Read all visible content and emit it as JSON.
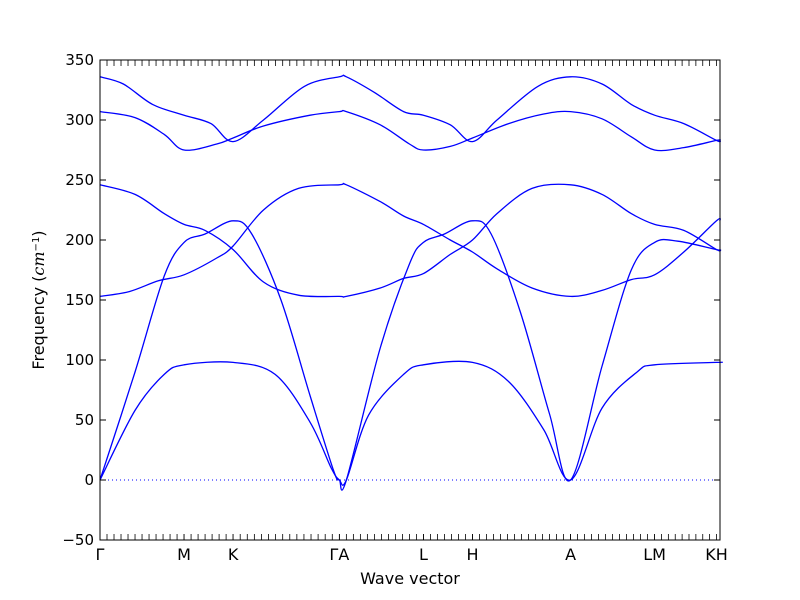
{
  "chart_data": {
    "type": "line",
    "xlabel": "Wave vector",
    "ylabel_prefix": "Frequency (",
    "ylabel_math": "cm",
    "ylabel_exp": "−1",
    "ylabel_suffix": ")",
    "ylim": [
      -50,
      350
    ],
    "yticks": [
      -50,
      0,
      50,
      100,
      150,
      200,
      250,
      300,
      350
    ],
    "ytick_labels": [
      "−50",
      "0",
      "50",
      "100",
      "150",
      "200",
      "250",
      "300",
      "350"
    ],
    "xlim": [
      0,
      5.31
    ],
    "high_symmetry_points": [
      {
        "label": "Γ",
        "x": 0
      },
      {
        "label": "M",
        "x": 0.72
      },
      {
        "label": "K",
        "x": 1.14
      },
      {
        "label": "ΓA",
        "x": 2.05
      },
      {
        "label": "L",
        "x": 2.77
      },
      {
        "label": "H",
        "x": 3.19
      },
      {
        "label": "A",
        "x": 4.03
      },
      {
        "label": "LM",
        "x": 4.75
      },
      {
        "label": "KH",
        "x": 5.28
      }
    ],
    "zero_line": {
      "y": 0,
      "style": "dotted",
      "color": "#0000ff"
    },
    "grid": false,
    "legend": "none",
    "line_color": "#0000ff",
    "series": [
      {
        "x": [
          0,
          0.3,
          0.55,
          0.72,
          1.14,
          1.5,
          1.8,
          1.98,
          2.05,
          2.11,
          2.3,
          2.6,
          2.77,
          3.19,
          3.5,
          3.8,
          4.03,
          4.3,
          4.6,
          4.75,
          5.28,
          5.31
        ],
        "values": [
          0,
          58,
          88,
          96,
          98,
          88,
          48,
          10,
          0,
          0,
          54,
          88,
          96,
          98,
          82,
          42,
          0,
          60,
          90,
          96,
          98,
          98
        ]
      },
      {
        "x": [
          0,
          0.3,
          0.55,
          0.72,
          0.9,
          1.14,
          1.3,
          1.55,
          1.8,
          2.0,
          2.05,
          2.11,
          2.4,
          2.65,
          2.77,
          2.95,
          3.19,
          3.35,
          3.6,
          3.85,
          4.03,
          4.3,
          4.55,
          4.75,
          4.95,
          5.28,
          5.31
        ],
        "values": [
          0,
          90,
          170,
          198,
          205,
          216,
          205,
          150,
          70,
          8,
          0,
          0,
          110,
          180,
          198,
          205,
          216,
          205,
          140,
          55,
          0,
          95,
          175,
          198,
          199,
          192,
          192
        ]
      },
      {
        "x": [
          0,
          0.25,
          0.5,
          0.72,
          1.0,
          1.14,
          1.4,
          1.7,
          2.05,
          2.11,
          2.4,
          2.6,
          2.77,
          3.0,
          3.19,
          3.4,
          3.7,
          4.03,
          4.3,
          4.55,
          4.75,
          5.0,
          5.28,
          5.31
        ],
        "values": [
          153,
          157,
          166,
          171,
          185,
          195,
          225,
          243,
          246,
          246,
          232,
          220,
          213,
          200,
          190,
          176,
          160,
          153,
          158,
          167,
          171,
          190,
          216,
          216
        ]
      },
      {
        "x": [
          0,
          0.3,
          0.55,
          0.72,
          0.9,
          1.14,
          1.4,
          1.7,
          2.05,
          2.11,
          2.4,
          2.6,
          2.77,
          3.0,
          3.19,
          3.4,
          3.7,
          4.03,
          4.3,
          4.55,
          4.75,
          5.0,
          5.28,
          5.31
        ],
        "values": [
          246,
          238,
          222,
          213,
          208,
          192,
          165,
          154,
          153,
          153,
          160,
          168,
          172,
          188,
          200,
          222,
          243,
          246,
          238,
          222,
          213,
          208,
          192,
          192
        ]
      },
      {
        "x": [
          0,
          0.3,
          0.55,
          0.72,
          1.0,
          1.14,
          1.4,
          1.8,
          2.05,
          2.11,
          2.4,
          2.65,
          2.77,
          3.0,
          3.19,
          3.5,
          3.8,
          4.03,
          4.3,
          4.55,
          4.75,
          5.0,
          5.28,
          5.31
        ],
        "values": [
          307,
          302,
          288,
          275,
          280,
          285,
          295,
          304,
          307,
          307,
          296,
          280,
          275,
          278,
          285,
          297,
          305,
          307,
          301,
          286,
          275,
          277,
          283,
          283
        ]
      },
      {
        "x": [
          0,
          0.2,
          0.45,
          0.72,
          0.95,
          1.14,
          1.4,
          1.75,
          2.05,
          2.11,
          2.35,
          2.6,
          2.77,
          3.0,
          3.19,
          3.4,
          3.75,
          4.03,
          4.3,
          4.55,
          4.75,
          5.0,
          5.28,
          5.31
        ],
        "values": [
          336,
          330,
          313,
          304,
          297,
          282,
          300,
          328,
          336,
          336,
          323,
          307,
          304,
          296,
          282,
          300,
          328,
          336,
          330,
          313,
          304,
          297,
          283,
          283
        ]
      }
    ]
  }
}
